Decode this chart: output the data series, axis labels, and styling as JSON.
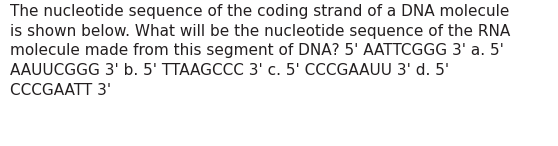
{
  "lines": [
    "The nucleotide sequence of the coding strand of a DNA molecule",
    "is shown below. What will be the nucleotide sequence of the RNA",
    "molecule made from this segment of DNA? 5' AATTCGGG 3' a. 5'",
    "AAUUCGGG 3' b. 5' TTAAGCCC 3' c. 5' CCCGAAUU 3' d. 5'",
    "CCCGAATT 3'"
  ],
  "background_color": "#ffffff",
  "text_color": "#231f20",
  "font_size": 11.0,
  "fig_width": 5.58,
  "fig_height": 1.46,
  "dpi": 100
}
